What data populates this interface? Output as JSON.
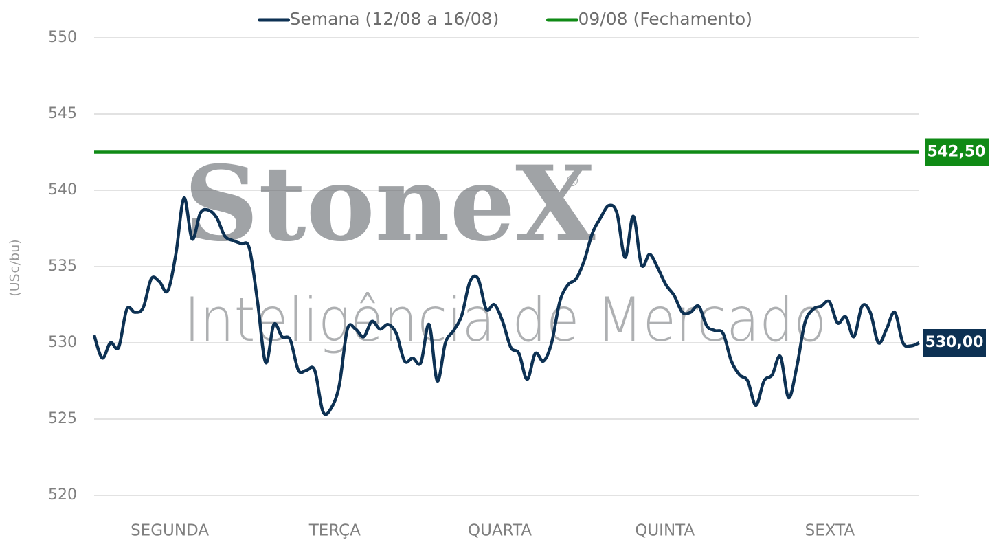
{
  "chart_data": {
    "type": "line",
    "y_label": "(US¢/bu)",
    "watermark": {
      "brand": "StoneX",
      "mark": "®",
      "tagline": "Inteligência de Mercado"
    },
    "x_labels": [
      "SEGUNDA",
      "TERÇA",
      "QUARTA",
      "QUINTA",
      "SEXTA"
    ],
    "ylim": [
      520,
      550
    ],
    "yticks": [
      520,
      525,
      530,
      535,
      540,
      545,
      550
    ],
    "grid": true,
    "legend": "top",
    "series": [
      {
        "name": "Semana (12/08 a 16/08)",
        "color": "#0d3153",
        "end_label": "530,00",
        "values": [
          530.5,
          529.0,
          530.0,
          529.7,
          532.2,
          532.0,
          532.3,
          534.2,
          534.0,
          533.4,
          535.8,
          539.5,
          536.8,
          538.5,
          538.7,
          538.2,
          537.0,
          536.7,
          536.5,
          536.2,
          532.7,
          528.7,
          531.2,
          530.4,
          530.2,
          528.2,
          528.2,
          528.2,
          525.5,
          525.7,
          527.2,
          530.9,
          530.9,
          530.4,
          531.4,
          530.9,
          531.2,
          530.6,
          528.8,
          529.0,
          528.7,
          531.2,
          527.5,
          530.0,
          530.8,
          531.8,
          534.0,
          534.2,
          532.2,
          532.5,
          531.4,
          529.7,
          529.3,
          527.6,
          529.3,
          528.8,
          530.0,
          532.7,
          533.8,
          534.2,
          535.4,
          537.2,
          538.2,
          539.0,
          538.5,
          535.6,
          538.3,
          535.1,
          535.8,
          534.9,
          533.8,
          533.1,
          532.0,
          532.0,
          532.4,
          531.1,
          530.8,
          530.6,
          528.8,
          527.9,
          527.5,
          525.9,
          527.5,
          527.9,
          529.1,
          526.4,
          528.4,
          531.3,
          532.2,
          532.4,
          532.7,
          531.3,
          531.7,
          530.4,
          532.4,
          532.0,
          530.0,
          530.9,
          532.0,
          530.0,
          529.8,
          530.0
        ]
      },
      {
        "name": "09/08 (Fechamento)",
        "color": "#0f8a15",
        "kind": "hline",
        "value": 542.5,
        "value_label": "542,50"
      }
    ]
  }
}
